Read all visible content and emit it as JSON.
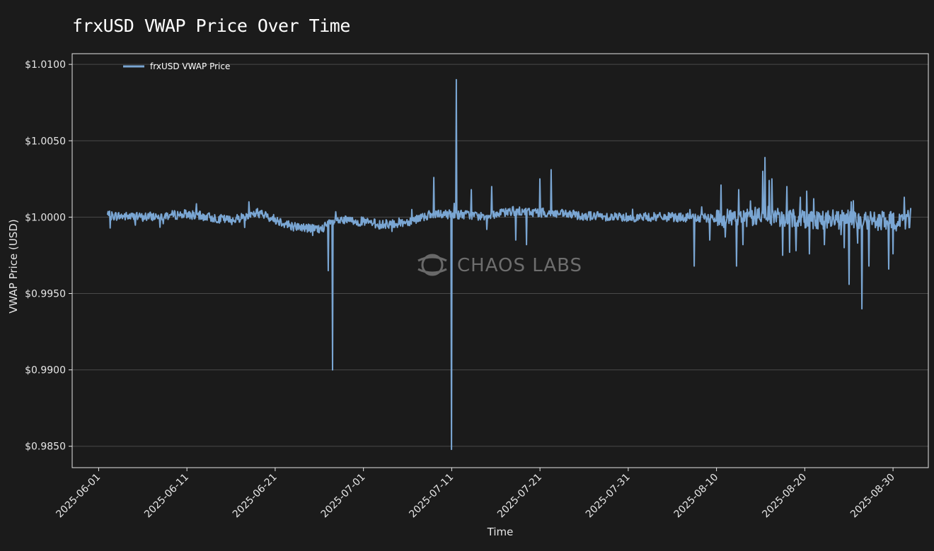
{
  "chart_data": {
    "type": "line",
    "title": "frxUSD VWAP Price Over Time",
    "xlabel": "Time",
    "ylabel": "VWAP Price (USD)",
    "ylim": [
      0.9836,
      1.0107
    ],
    "xlim": [
      "2025-05-29",
      "2025-09-03"
    ],
    "y_ticks": [
      0.985,
      0.99,
      0.995,
      1.0,
      1.005,
      1.01
    ],
    "y_tick_labels": [
      "$0.9850",
      "$0.9900",
      "$0.9950",
      "$1.0000",
      "$1.0050",
      "$1.0100"
    ],
    "x_ticks": [
      "2025-06-01",
      "2025-06-11",
      "2025-06-21",
      "2025-07-01",
      "2025-07-11",
      "2025-07-21",
      "2025-07-31",
      "2025-08-10",
      "2025-08-20",
      "2025-08-30"
    ],
    "grid": "horizontal",
    "legend_position": "top-left",
    "series": [
      {
        "name": "frxUSD VWAP Price",
        "color": "#7aa6d3",
        "x_start": "2025-06-02",
        "x_end": "2025-09-01",
        "anchor_points": [
          [
            "2025-06-02",
            1.0001
          ],
          [
            "2025-06-06",
            1.0
          ],
          [
            "2025-06-11",
            1.0002
          ],
          [
            "2025-06-16",
            0.9998
          ],
          [
            "2025-06-19",
            1.0003
          ],
          [
            "2025-06-23",
            0.9994
          ],
          [
            "2025-06-26",
            0.9992
          ],
          [
            "2025-06-28",
            0.9998
          ],
          [
            "2025-07-01",
            0.9997
          ],
          [
            "2025-07-03",
            0.9995
          ],
          [
            "2025-07-06",
            0.9997
          ],
          [
            "2025-07-08",
            1.0001
          ],
          [
            "2025-07-11",
            1.0002
          ],
          [
            "2025-07-15",
            1.0001
          ],
          [
            "2025-07-18",
            1.0004
          ],
          [
            "2025-07-21",
            1.0003
          ],
          [
            "2025-07-26",
            1.0001
          ],
          [
            "2025-07-31",
            1.0
          ],
          [
            "2025-08-05",
            1.0
          ],
          [
            "2025-08-10",
            0.9999
          ],
          [
            "2025-08-15",
            1.0001
          ],
          [
            "2025-08-20",
            0.9999
          ],
          [
            "2025-08-25",
            0.9998
          ],
          [
            "2025-08-30",
            0.9997
          ],
          [
            "2025-09-01",
            0.9999
          ]
        ],
        "spikes": [
          [
            "2025-06-18",
            1.001
          ],
          [
            "2025-06-25",
            0.9988
          ],
          [
            "2025-06-27",
            0.99
          ],
          [
            "2025-06-27",
            0.9965
          ],
          [
            "2025-07-03",
            0.9993
          ],
          [
            "2025-07-06",
            1.0005
          ],
          [
            "2025-07-09",
            1.0026
          ],
          [
            "2025-07-11",
            1.0009
          ],
          [
            "2025-07-11",
            1.009
          ],
          [
            "2025-07-11",
            0.9848
          ],
          [
            "2025-07-13",
            1.0018
          ],
          [
            "2025-07-15",
            1.002
          ],
          [
            "2025-07-15",
            0.9992
          ],
          [
            "2025-07-18",
            0.9985
          ],
          [
            "2025-07-19",
            0.9982
          ],
          [
            "2025-07-21",
            1.0025
          ],
          [
            "2025-07-22",
            1.0031
          ],
          [
            "2025-08-07",
            0.9968
          ],
          [
            "2025-08-07",
            1.0005
          ],
          [
            "2025-08-09",
            0.9985
          ],
          [
            "2025-08-10",
            1.0021
          ],
          [
            "2025-08-11",
            0.9987
          ],
          [
            "2025-08-12",
            0.9968
          ],
          [
            "2025-08-12",
            1.0018
          ],
          [
            "2025-08-13",
            0.9982
          ],
          [
            "2025-08-15",
            1.003
          ],
          [
            "2025-08-15",
            1.0039
          ],
          [
            "2025-08-16",
            1.0024
          ],
          [
            "2025-08-16",
            1.0025
          ],
          [
            "2025-08-17",
            0.9975
          ],
          [
            "2025-08-18",
            1.002
          ],
          [
            "2025-08-18",
            0.9977
          ],
          [
            "2025-08-19",
            1.0013
          ],
          [
            "2025-08-19",
            0.9978
          ],
          [
            "2025-08-20",
            1.0017
          ],
          [
            "2025-08-20",
            0.9976
          ],
          [
            "2025-08-21",
            1.0012
          ],
          [
            "2025-08-22",
            0.9982
          ],
          [
            "2025-08-24",
            0.998
          ],
          [
            "2025-08-25",
            0.9956
          ],
          [
            "2025-08-25",
            1.001
          ],
          [
            "2025-08-26",
            0.994
          ],
          [
            "2025-08-26",
            0.9983
          ],
          [
            "2025-08-27",
            0.9968
          ],
          [
            "2025-08-29",
            0.9966
          ],
          [
            "2025-08-30",
            0.9976
          ],
          [
            "2025-08-31",
            1.0013
          ],
          [
            "2025-09-01",
            1.0006
          ]
        ]
      }
    ]
  },
  "watermark": {
    "text": "CHAOS LABS",
    "icon": "chaos-labs-logo-icon"
  },
  "colors": {
    "background": "#1b1b1b",
    "grid": "#4a4a4a",
    "axis": "#e6e6e6",
    "line": "#7aa6d3"
  }
}
